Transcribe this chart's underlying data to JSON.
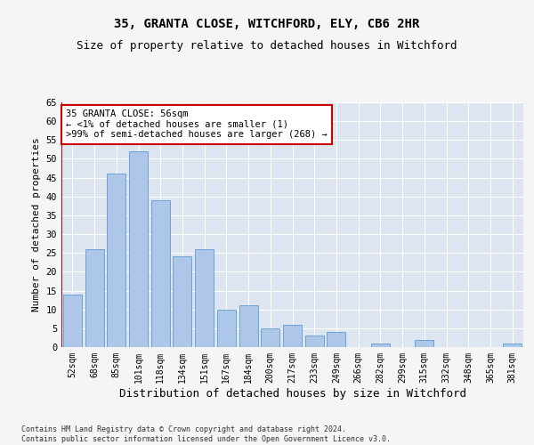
{
  "title1": "35, GRANTA CLOSE, WITCHFORD, ELY, CB6 2HR",
  "title2": "Size of property relative to detached houses in Witchford",
  "xlabel": "Distribution of detached houses by size in Witchford",
  "ylabel": "Number of detached properties",
  "categories": [
    "52sqm",
    "68sqm",
    "85sqm",
    "101sqm",
    "118sqm",
    "134sqm",
    "151sqm",
    "167sqm",
    "184sqm",
    "200sqm",
    "217sqm",
    "233sqm",
    "249sqm",
    "266sqm",
    "282sqm",
    "299sqm",
    "315sqm",
    "332sqm",
    "348sqm",
    "365sqm",
    "381sqm"
  ],
  "values": [
    14,
    26,
    46,
    52,
    39,
    24,
    26,
    10,
    11,
    5,
    6,
    3,
    4,
    0,
    1,
    0,
    2,
    0,
    0,
    0,
    1
  ],
  "bar_color": "#aec6e8",
  "bar_edge_color": "#5b9bd5",
  "annotation_line1": "35 GRANTA CLOSE: 56sqm",
  "annotation_line2": "← <1% of detached houses are smaller (1)",
  "annotation_line3": ">99% of semi-detached houses are larger (268) →",
  "annotation_box_color": "#ffffff",
  "annotation_box_edge_color": "#cc0000",
  "ylim": [
    0,
    65
  ],
  "yticks": [
    0,
    5,
    10,
    15,
    20,
    25,
    30,
    35,
    40,
    45,
    50,
    55,
    60,
    65
  ],
  "footer_text": "Contains HM Land Registry data © Crown copyright and database right 2024.\nContains public sector information licensed under the Open Government Licence v3.0.",
  "bg_color": "#dde6f0",
  "grid_color": "#ffffff",
  "fig_bg_color": "#f5f5f5",
  "title_fontsize": 10,
  "subtitle_fontsize": 9,
  "tick_fontsize": 7,
  "ylabel_fontsize": 8,
  "xlabel_fontsize": 9,
  "annotation_fontsize": 7.5,
  "footer_fontsize": 6
}
